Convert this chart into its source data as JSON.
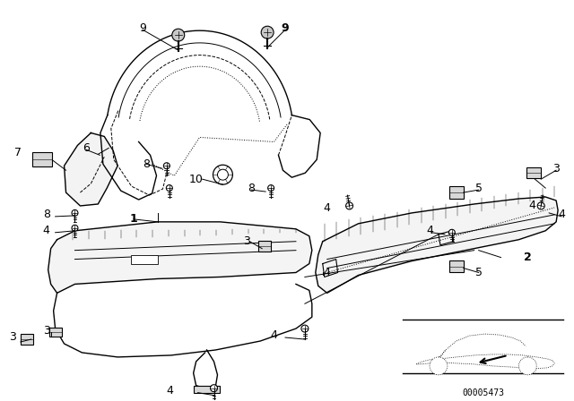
{
  "background_color": "#ffffff",
  "fig_width": 6.4,
  "fig_height": 4.48,
  "dpi": 100,
  "line_color": "#000000",
  "part_number_text": "00005473"
}
